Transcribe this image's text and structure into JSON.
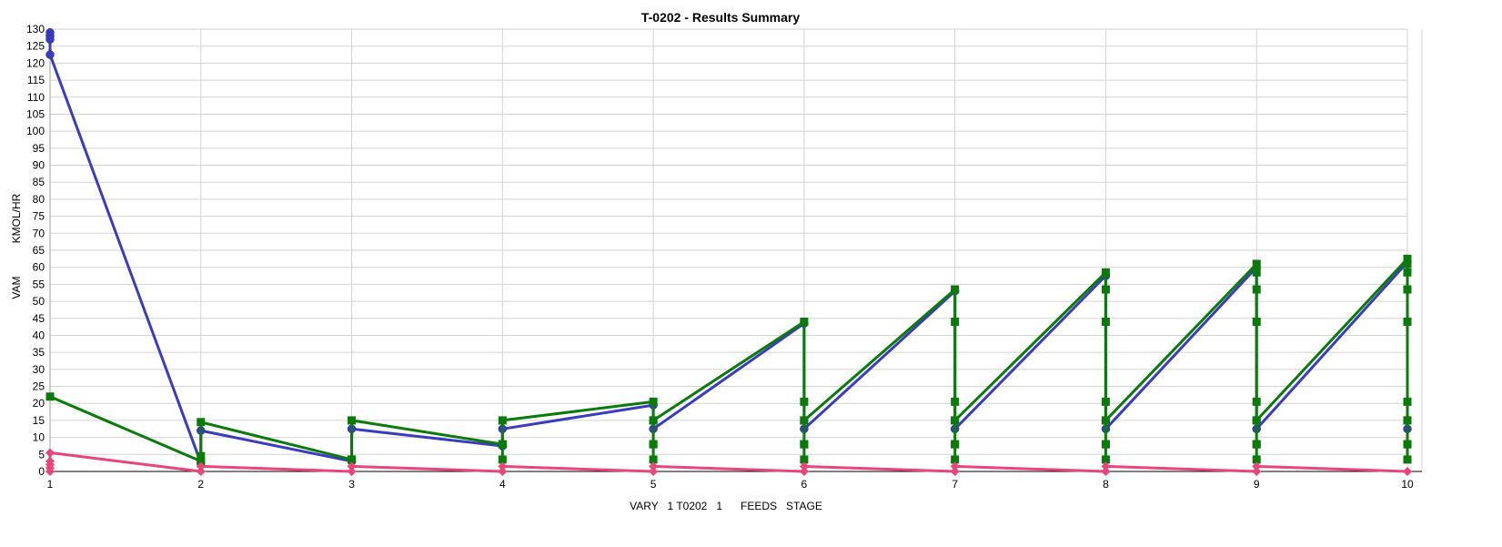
{
  "chart_data": {
    "type": "line",
    "title": "T-0202 - Results Summary",
    "xlabel": "VARY   1 T0202   1      FEEDS   STAGE",
    "ylabel_lines": [
      "VAM",
      "KMOL/HR"
    ],
    "xlim": [
      1,
      10
    ],
    "ylim": [
      0,
      130
    ],
    "x_ticks": [
      "1",
      "2",
      "3",
      "4",
      "5",
      "6",
      "7",
      "8",
      "9",
      "10"
    ],
    "y_ticks": [
      "0",
      "5",
      "10",
      "15",
      "20",
      "25",
      "30",
      "35",
      "40",
      "45",
      "50",
      "55",
      "60",
      "65",
      "70",
      "75",
      "80",
      "85",
      "90",
      "95",
      "100",
      "105",
      "110",
      "115",
      "120",
      "125",
      "130"
    ],
    "grid": true,
    "series": [
      {
        "color": "#3b3bbf",
        "marker": "circle",
        "x": [
          1,
          1,
          1,
          1,
          2,
          2,
          3,
          3,
          4,
          4,
          5,
          5,
          6,
          6,
          7,
          7,
          8,
          8,
          9,
          9,
          10,
          10
        ],
        "y": [
          129,
          128,
          127,
          122.5,
          2.5,
          12,
          3,
          12.5,
          7.5,
          12.5,
          19.5,
          12.5,
          43.5,
          12.5,
          53,
          12.5,
          57.5,
          12.5,
          60,
          12.5,
          61.5,
          12.5
        ]
      },
      {
        "color": "#0a7a0a",
        "marker": "square",
        "x": [
          1,
          2,
          2,
          2,
          3,
          3,
          3,
          4,
          4,
          4,
          4,
          5,
          5,
          5,
          5,
          5,
          5,
          6,
          6,
          6,
          6,
          6,
          6,
          6,
          7,
          7,
          7,
          7,
          7,
          7,
          7,
          7,
          8,
          8,
          8,
          8,
          8,
          8,
          8,
          8,
          8,
          9,
          9,
          9,
          9,
          9,
          9,
          9,
          9,
          9,
          9,
          10,
          10,
          10,
          10,
          10,
          10,
          10,
          10,
          10,
          10,
          10
        ],
        "y": [
          22,
          3,
          4.5,
          14.5,
          3.5,
          3.5,
          15,
          8,
          3.5,
          8,
          15,
          20.5,
          15,
          8,
          3.5,
          8,
          15,
          44,
          20.5,
          15,
          8,
          3.5,
          8,
          15,
          53.5,
          44,
          20.5,
          15,
          8,
          3.5,
          8,
          15,
          58.5,
          53.5,
          44,
          20.5,
          15,
          8,
          3.5,
          8,
          15,
          61,
          58.5,
          53.5,
          44,
          20.5,
          15,
          8,
          3.5,
          8,
          15,
          62.5,
          61,
          58.5,
          53.5,
          44,
          20.5,
          15,
          8,
          3.5,
          8,
          15
        ]
      },
      {
        "color": "#e8457a",
        "marker": "diamond",
        "x": [
          1,
          1,
          1,
          1,
          1,
          2,
          2,
          3,
          3,
          4,
          4,
          5,
          5,
          6,
          6,
          7,
          7,
          8,
          8,
          9,
          9,
          10
        ],
        "y": [
          0,
          1,
          2,
          3,
          5.5,
          0,
          1.5,
          0,
          1.5,
          0,
          1.5,
          0,
          1.5,
          0,
          1.5,
          0,
          1.5,
          0,
          1.5,
          0,
          1.5,
          0
        ]
      }
    ]
  }
}
